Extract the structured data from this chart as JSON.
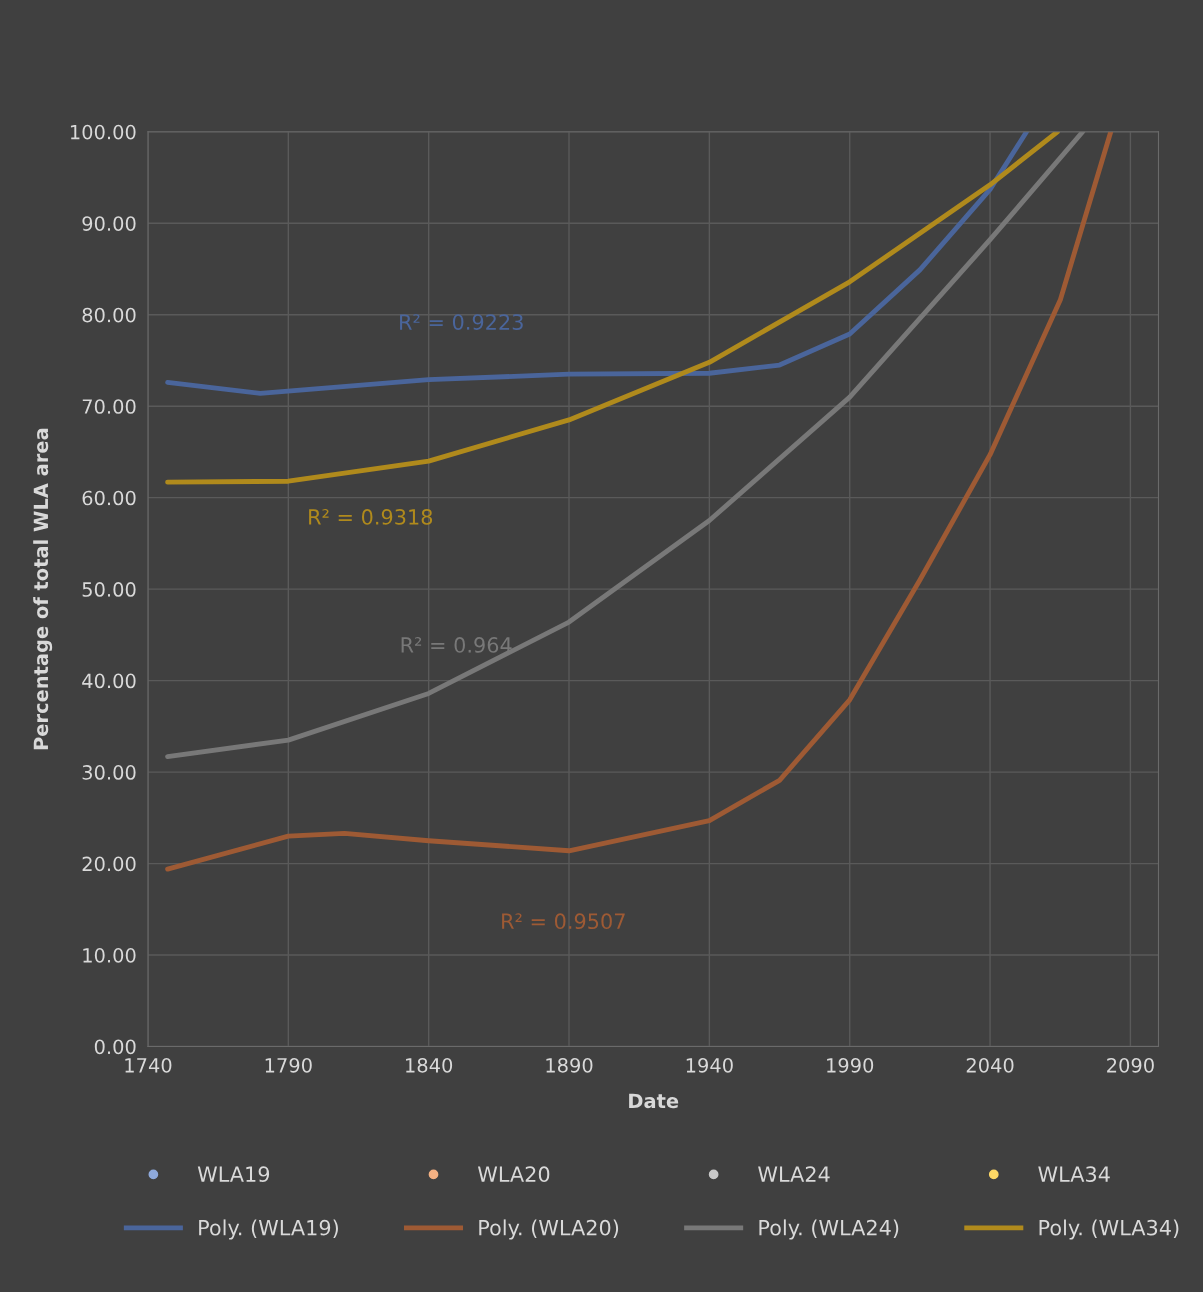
{
  "chart_data": {
    "type": "line",
    "xlabel": "Date",
    "ylabel": "Percentage of total WLA area",
    "xlim": [
      1740,
      2100
    ],
    "xticks": [
      1740,
      1790,
      1840,
      1890,
      1940,
      1990,
      2040,
      2090
    ],
    "ylim": [
      0,
      100
    ],
    "yticks": [
      {
        "value": 0,
        "label": "0.00"
      },
      {
        "value": 10,
        "label": "10.00"
      },
      {
        "value": 20,
        "label": "20.00"
      },
      {
        "value": 30,
        "label": "30.00"
      },
      {
        "value": 40,
        "label": "40.00"
      },
      {
        "value": 50,
        "label": "50.00"
      },
      {
        "value": 60,
        "label": "60.00"
      },
      {
        "value": 70,
        "label": "70.00"
      },
      {
        "value": 80,
        "label": "80.00"
      },
      {
        "value": 90,
        "label": "90.00"
      },
      {
        "value": 100,
        "label": "100.00"
      }
    ],
    "grid": true,
    "legend": "bottom",
    "series": [
      {
        "name": "WLA19",
        "type": "scatter",
        "color": "#8faadc"
      },
      {
        "name": "WLA20",
        "type": "scatter",
        "color": "#f4b183"
      },
      {
        "name": "WLA24",
        "type": "scatter",
        "color": "#c9c9c9"
      },
      {
        "name": "WLA34",
        "type": "scatter",
        "color": "#ffd966"
      },
      {
        "name": "Poly. (WLA19)",
        "color": "#4a659b",
        "x": [
          1747,
          1780,
          1840,
          1890,
          1940,
          1965,
          1990,
          2015,
          2040,
          2053
        ],
        "values": [
          72.6,
          71.4,
          72.9,
          73.5,
          73.6,
          74.5,
          77.9,
          84.9,
          93.7,
          100
        ]
      },
      {
        "name": "Poly. (WLA20)",
        "color": "#9e5a34",
        "x": [
          1747,
          1790,
          1810,
          1840,
          1890,
          1940,
          1965,
          1990,
          2015,
          2040,
          2065,
          2083
        ],
        "values": [
          19.4,
          23.0,
          23.3,
          22.5,
          21.4,
          24.7,
          29.1,
          37.9,
          51.0,
          64.7,
          81.6,
          100
        ]
      },
      {
        "name": "Poly. (WLA24)",
        "color": "#787878",
        "x": [
          1747,
          1790,
          1840,
          1890,
          1940,
          1990,
          2040,
          2073
        ],
        "values": [
          31.7,
          33.5,
          38.6,
          46.4,
          57.5,
          71.0,
          88.2,
          100
        ]
      },
      {
        "name": "Poly. (WLA34)",
        "color": "#b08a1c",
        "x": [
          1747,
          1790,
          1840,
          1890,
          1940,
          1990,
          2040,
          2064
        ],
        "values": [
          61.7,
          61.8,
          64.0,
          68.5,
          74.8,
          83.6,
          94.2,
          100
        ]
      }
    ],
    "annotations": [
      "R² = 0.9223",
      "R² = 0.9507",
      "R² = 0.964",
      "R² = 0.9318"
    ]
  }
}
